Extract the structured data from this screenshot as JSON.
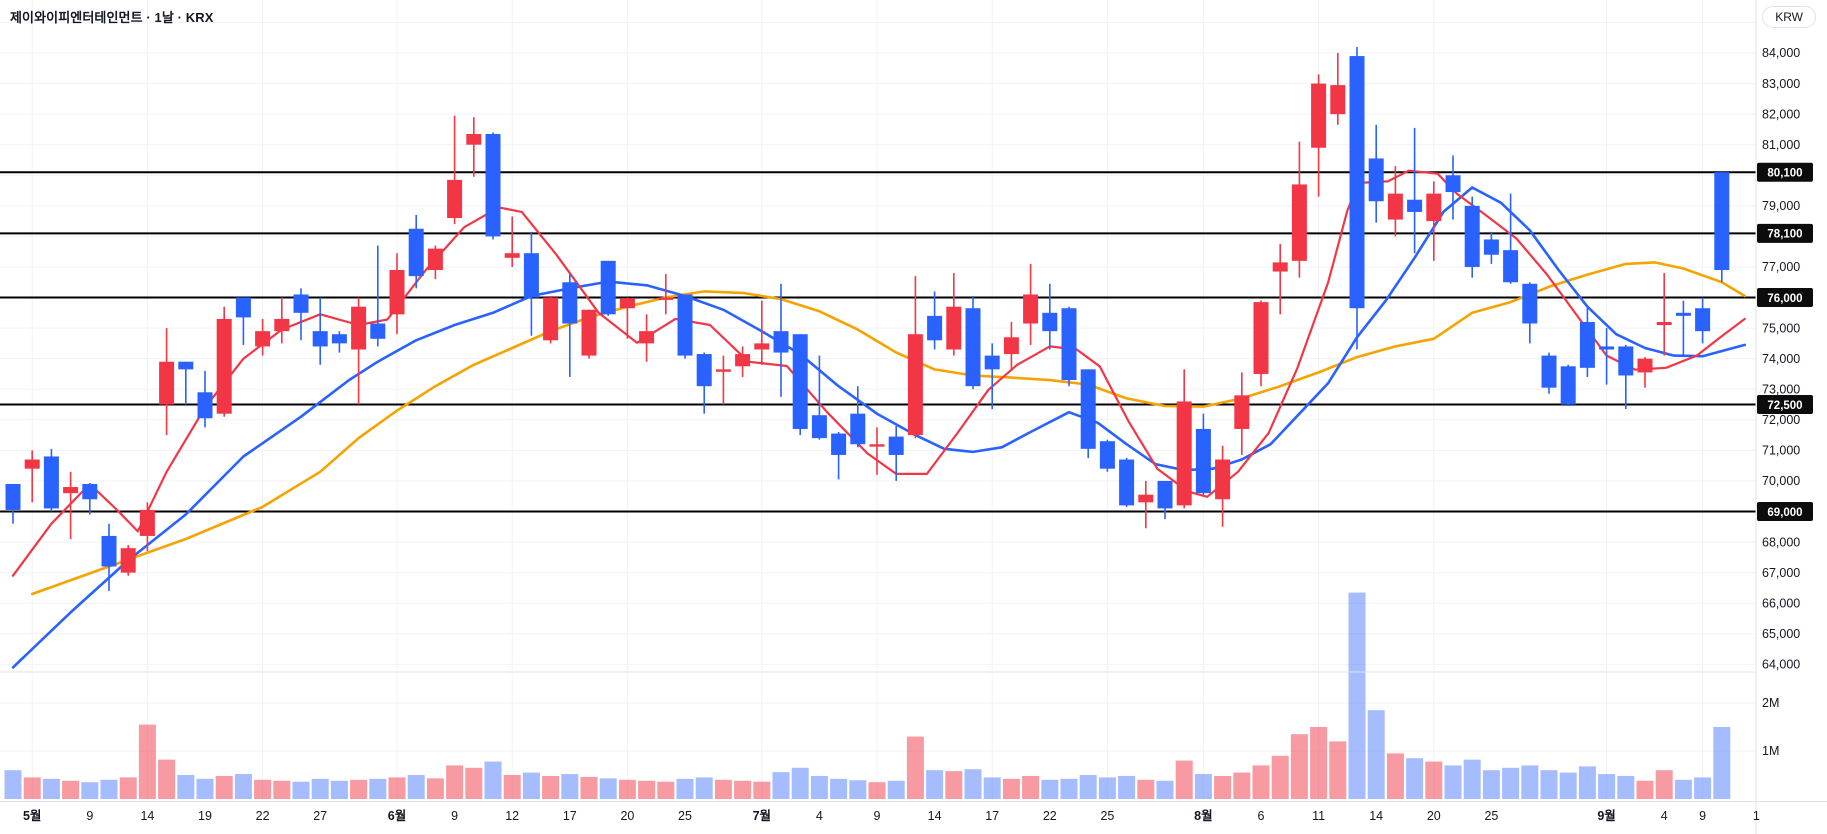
{
  "header": {
    "title": "제이와이피엔터테인먼트 · 1날 · KRX",
    "currency_button": "KRW"
  },
  "chart_data": {
    "type": "candlestick",
    "title": "제이와이피엔터테인먼트 · 1날 · KRX",
    "exchange": "KRX",
    "interval": "1날",
    "currency": "KRW",
    "legend_position": "top-left",
    "grid": true,
    "price_axis_ticks": [
      "84,000",
      "83,000",
      "82,000",
      "81,000",
      "80,000",
      "79,000",
      "78,000",
      "77,000",
      "76,000",
      "75,000",
      "74,000",
      "73,000",
      "72,000",
      "71,000",
      "70,000",
      "69,000",
      "68,000",
      "67,000",
      "66,000",
      "65,000",
      "64,000"
    ],
    "price_axis_values": [
      84000,
      83000,
      82000,
      81000,
      80000,
      79000,
      78000,
      77000,
      76000,
      75000,
      74000,
      73000,
      72000,
      71000,
      70000,
      69000,
      68000,
      67000,
      66000,
      65000,
      64000
    ],
    "volume_axis_ticks": [
      {
        "label": "2M",
        "value": 2
      },
      {
        "label": "1M",
        "value": 1
      }
    ],
    "price_levels": [
      {
        "price": 80100,
        "label": "80,100"
      },
      {
        "price": 78100,
        "label": "78,100"
      },
      {
        "price": 76000,
        "label": "76,000"
      },
      {
        "price": 72500,
        "label": "72,500"
      },
      {
        "price": 69000,
        "label": "69,000"
      }
    ],
    "x_labels": [
      {
        "i": 1,
        "t": "5월",
        "m": true
      },
      {
        "i": 4,
        "t": "9"
      },
      {
        "i": 7,
        "t": "14"
      },
      {
        "i": 10,
        "t": "19"
      },
      {
        "i": 13,
        "t": "22"
      },
      {
        "i": 16,
        "t": "27"
      },
      {
        "i": 20,
        "t": "6월",
        "m": true
      },
      {
        "i": 23,
        "t": "9"
      },
      {
        "i": 26,
        "t": "12"
      },
      {
        "i": 29,
        "t": "17"
      },
      {
        "i": 32,
        "t": "20"
      },
      {
        "i": 35,
        "t": "25"
      },
      {
        "i": 39,
        "t": "7월",
        "m": true
      },
      {
        "i": 42,
        "t": "4"
      },
      {
        "i": 45,
        "t": "9"
      },
      {
        "i": 48,
        "t": "14"
      },
      {
        "i": 51,
        "t": "17"
      },
      {
        "i": 54,
        "t": "22"
      },
      {
        "i": 57,
        "t": "25"
      },
      {
        "i": 62,
        "t": "8월",
        "m": true
      },
      {
        "i": 65,
        "t": "6"
      },
      {
        "i": 68,
        "t": "11"
      },
      {
        "i": 71,
        "t": "14"
      },
      {
        "i": 74,
        "t": "20"
      },
      {
        "i": 77,
        "t": "25"
      },
      {
        "i": 83,
        "t": "9월",
        "m": true
      },
      {
        "i": 86,
        "t": "4"
      },
      {
        "i": 88,
        "t": "9"
      },
      {
        "i": 90.8,
        "t": "1"
      }
    ],
    "v_grid_indices": [
      1,
      7,
      13,
      20,
      26,
      32,
      39,
      45,
      51,
      57,
      62,
      68,
      74,
      83,
      88
    ],
    "candles": [
      [
        69900,
        69900,
        68600,
        69050
      ],
      [
        70400,
        71000,
        69300,
        70700
      ],
      [
        70800,
        71050,
        69000,
        69100
      ],
      [
        69600,
        70300,
        68100,
        69800
      ],
      [
        69900,
        69900,
        68900,
        69400
      ],
      [
        68200,
        68600,
        66400,
        67200
      ],
      [
        67000,
        67900,
        66900,
        67800
      ],
      [
        68200,
        69300,
        67700,
        69050
      ],
      [
        72500,
        75000,
        71500,
        73900
      ],
      [
        73900,
        73900,
        72500,
        73650
      ],
      [
        72900,
        73600,
        71750,
        72050
      ],
      [
        72200,
        75700,
        72100,
        75300
      ],
      [
        76000,
        76000,
        74450,
        75350
      ],
      [
        74400,
        75300,
        74100,
        74900
      ],
      [
        74900,
        76000,
        74500,
        75300
      ],
      [
        76100,
        76300,
        74600,
        75500
      ],
      [
        74900,
        76000,
        73800,
        74400
      ],
      [
        74800,
        74900,
        74200,
        74500
      ],
      [
        74300,
        76000,
        72500,
        75700
      ],
      [
        75150,
        77700,
        74400,
        74650
      ],
      [
        75450,
        77450,
        74800,
        76900
      ],
      [
        78250,
        78700,
        76300,
        76700
      ],
      [
        76900,
        77700,
        76600,
        77600
      ],
      [
        78600,
        81950,
        78400,
        79850
      ],
      [
        81000,
        81900,
        79950,
        81350
      ],
      [
        81350,
        81400,
        77900,
        78000
      ],
      [
        77300,
        78650,
        77000,
        77450
      ],
      [
        77450,
        78150,
        74750,
        76000
      ],
      [
        74600,
        76050,
        74500,
        76000
      ],
      [
        76500,
        76750,
        73400,
        75150
      ],
      [
        74100,
        75600,
        74000,
        75600
      ],
      [
        77200,
        77200,
        75400,
        75450
      ],
      [
        75650,
        76000,
        74650,
        75980
      ],
      [
        74500,
        75450,
        73900,
        74900
      ],
      [
        75980,
        76770,
        75450,
        76000
      ],
      [
        76100,
        76100,
        74000,
        74100
      ],
      [
        74150,
        74200,
        72200,
        73100
      ],
      [
        73600,
        74100,
        72500,
        73650
      ],
      [
        73750,
        74400,
        73400,
        74150
      ],
      [
        74300,
        75900,
        73800,
        74500
      ],
      [
        74900,
        76450,
        72750,
        74200
      ],
      [
        74800,
        74800,
        71500,
        71700
      ],
      [
        72150,
        74100,
        71350,
        71400
      ],
      [
        71550,
        71600,
        70050,
        70850
      ],
      [
        72200,
        73100,
        71100,
        71200
      ],
      [
        71150,
        71750,
        70200,
        71200
      ],
      [
        71450,
        71800,
        70000,
        70850
      ],
      [
        71500,
        76700,
        71400,
        74800
      ],
      [
        75400,
        76200,
        74300,
        74600
      ],
      [
        74300,
        76800,
        74100,
        75700
      ],
      [
        75650,
        76050,
        73000,
        73100
      ],
      [
        74100,
        74500,
        72350,
        73650
      ],
      [
        74150,
        75200,
        73600,
        74700
      ],
      [
        75150,
        77100,
        74450,
        76100
      ],
      [
        75500,
        76450,
        74300,
        74900
      ],
      [
        75650,
        75700,
        73100,
        73300
      ],
      [
        73650,
        73650,
        70750,
        71050
      ],
      [
        71300,
        71350,
        70300,
        70400
      ],
      [
        70700,
        70750,
        69150,
        69200
      ],
      [
        69300,
        70000,
        68450,
        69550
      ],
      [
        70000,
        70000,
        68750,
        69100
      ],
      [
        69200,
        73650,
        69100,
        72600
      ],
      [
        71700,
        72200,
        69550,
        69600
      ],
      [
        69400,
        71150,
        68500,
        70700
      ],
      [
        71700,
        73550,
        70850,
        72800
      ],
      [
        73500,
        75900,
        73100,
        75850
      ],
      [
        76850,
        77750,
        75450,
        77150
      ],
      [
        77200,
        81100,
        76650,
        79700
      ],
      [
        80900,
        83300,
        79300,
        83000
      ],
      [
        82000,
        84000,
        81650,
        82950
      ],
      [
        83900,
        84200,
        74300,
        75650
      ],
      [
        80550,
        81650,
        78450,
        79150
      ],
      [
        78550,
        80300,
        78000,
        79400
      ],
      [
        79200,
        81550,
        77450,
        78800
      ],
      [
        78500,
        79800,
        77200,
        79400
      ],
      [
        80000,
        80650,
        78550,
        79450
      ],
      [
        79000,
        79300,
        76650,
        77000
      ],
      [
        77900,
        78150,
        77100,
        77400
      ],
      [
        77550,
        79400,
        76450,
        76500
      ],
      [
        76450,
        76500,
        74500,
        75150
      ],
      [
        74100,
        74200,
        72850,
        73050
      ],
      [
        73750,
        73800,
        72450,
        72500
      ],
      [
        75200,
        75650,
        73400,
        73700
      ],
      [
        74400,
        75000,
        73150,
        74300
      ],
      [
        74400,
        74450,
        72350,
        73450
      ],
      [
        73550,
        74050,
        73050,
        74000
      ],
      [
        75100,
        76800,
        74100,
        75200
      ],
      [
        75500,
        75900,
        74100,
        75400
      ],
      [
        75650,
        76000,
        74500,
        74900
      ],
      [
        80100,
        80100,
        76500,
        76900
      ]
    ],
    "volumes_millions": [
      0.6,
      0.45,
      0.42,
      0.38,
      0.35,
      0.4,
      0.45,
      1.55,
      0.82,
      0.5,
      0.42,
      0.48,
      0.52,
      0.4,
      0.38,
      0.36,
      0.42,
      0.38,
      0.4,
      0.42,
      0.45,
      0.5,
      0.43,
      0.7,
      0.65,
      0.78,
      0.5,
      0.55,
      0.48,
      0.52,
      0.46,
      0.43,
      0.4,
      0.38,
      0.36,
      0.42,
      0.45,
      0.4,
      0.38,
      0.36,
      0.56,
      0.65,
      0.48,
      0.42,
      0.39,
      0.35,
      0.38,
      1.3,
      0.6,
      0.58,
      0.62,
      0.45,
      0.42,
      0.48,
      0.4,
      0.42,
      0.5,
      0.45,
      0.48,
      0.4,
      0.38,
      0.8,
      0.52,
      0.48,
      0.55,
      0.7,
      0.9,
      1.35,
      1.5,
      1.2,
      4.3,
      1.85,
      0.95,
      0.85,
      0.78,
      0.7,
      0.82,
      0.6,
      0.65,
      0.7,
      0.6,
      0.55,
      0.68,
      0.52,
      0.48,
      0.38,
      0.6,
      0.4,
      0.45,
      1.5
    ],
    "ma_fast_red": [
      [
        0,
        66900
      ],
      [
        2,
        68600
      ],
      [
        4,
        69900
      ],
      [
        5.5,
        69000
      ],
      [
        6.5,
        68350
      ],
      [
        8,
        70300
      ],
      [
        10,
        72400
      ],
      [
        12,
        74000
      ],
      [
        14,
        74950
      ],
      [
        16,
        75450
      ],
      [
        18,
        75100
      ],
      [
        19.5,
        75280
      ],
      [
        21.5,
        76900
      ],
      [
        23.5,
        78300
      ],
      [
        25.3,
        78950
      ],
      [
        26.5,
        78800
      ],
      [
        28.3,
        77400
      ],
      [
        30.5,
        75500
      ],
      [
        32.5,
        74520
      ],
      [
        34.5,
        75300
      ],
      [
        36.3,
        75100
      ],
      [
        38.3,
        73900
      ],
      [
        40.3,
        73760
      ],
      [
        42.4,
        72250
      ],
      [
        44.5,
        70900
      ],
      [
        46,
        70230
      ],
      [
        47.6,
        70230
      ],
      [
        49.2,
        71570
      ],
      [
        50.8,
        72980
      ],
      [
        52.3,
        73800
      ],
      [
        54,
        74400
      ],
      [
        55.4,
        74300
      ],
      [
        56.6,
        73750
      ],
      [
        58.1,
        71950
      ],
      [
        59.6,
        70400
      ],
      [
        61.2,
        69650
      ],
      [
        62.2,
        69480
      ],
      [
        63.8,
        70300
      ],
      [
        65.4,
        71570
      ],
      [
        66.9,
        73700
      ],
      [
        68.5,
        76500
      ],
      [
        69.5,
        78850
      ],
      [
        70.1,
        79750
      ],
      [
        71.6,
        79800
      ],
      [
        72.7,
        80150
      ],
      [
        74.2,
        80050
      ],
      [
        75.2,
        79400
      ],
      [
        76.8,
        78650
      ],
      [
        78.3,
        77930
      ],
      [
        79.9,
        76750
      ],
      [
        81.4,
        75460
      ],
      [
        83,
        74100
      ],
      [
        84.5,
        73640
      ],
      [
        86.1,
        73700
      ],
      [
        87.7,
        74100
      ],
      [
        88.9,
        74690
      ],
      [
        90.2,
        75300
      ]
    ],
    "ma_mid_blue": [
      [
        0,
        63900
      ],
      [
        3,
        65700
      ],
      [
        6,
        67400
      ],
      [
        9,
        68900
      ],
      [
        12,
        70800
      ],
      [
        15,
        72100
      ],
      [
        17.5,
        73300
      ],
      [
        19,
        73900
      ],
      [
        21,
        74600
      ],
      [
        23,
        75100
      ],
      [
        25,
        75500
      ],
      [
        27,
        76050
      ],
      [
        29,
        76300
      ],
      [
        31,
        76520
      ],
      [
        33,
        76400
      ],
      [
        35,
        76050
      ],
      [
        37,
        75600
      ],
      [
        39,
        74900
      ],
      [
        41,
        74150
      ],
      [
        43,
        73100
      ],
      [
        45,
        72200
      ],
      [
        47,
        71500
      ],
      [
        48.5,
        71050
      ],
      [
        50,
        70950
      ],
      [
        51.5,
        71100
      ],
      [
        53,
        71600
      ],
      [
        55,
        72250
      ],
      [
        56.5,
        71900
      ],
      [
        58,
        71200
      ],
      [
        59.5,
        70550
      ],
      [
        61,
        70350
      ],
      [
        62.5,
        70400
      ],
      [
        64,
        70700
      ],
      [
        65.5,
        71200
      ],
      [
        67,
        72200
      ],
      [
        68.5,
        73200
      ],
      [
        70,
        74700
      ],
      [
        71.5,
        75900
      ],
      [
        73,
        77300
      ],
      [
        74.5,
        78800
      ],
      [
        76,
        79600
      ],
      [
        77.5,
        79100
      ],
      [
        79,
        78200
      ],
      [
        80.5,
        76900
      ],
      [
        82,
        75700
      ],
      [
        83.5,
        74800
      ],
      [
        85,
        74350
      ],
      [
        86.5,
        74100
      ],
      [
        88,
        74080
      ],
      [
        89.3,
        74300
      ],
      [
        90.2,
        74450
      ]
    ],
    "ma_slow_yellow": [
      [
        1,
        66300
      ],
      [
        5,
        67200
      ],
      [
        9,
        68100
      ],
      [
        13,
        69150
      ],
      [
        16,
        70300
      ],
      [
        18,
        71400
      ],
      [
        20,
        72300
      ],
      [
        22,
        73100
      ],
      [
        24,
        73800
      ],
      [
        26,
        74350
      ],
      [
        28,
        74900
      ],
      [
        30,
        75350
      ],
      [
        32,
        75700
      ],
      [
        34,
        76000
      ],
      [
        36,
        76200
      ],
      [
        38,
        76150
      ],
      [
        40,
        75950
      ],
      [
        42,
        75550
      ],
      [
        44,
        74950
      ],
      [
        46,
        74200
      ],
      [
        48,
        73650
      ],
      [
        50,
        73450
      ],
      [
        52,
        73380
      ],
      [
        54,
        73300
      ],
      [
        56,
        73150
      ],
      [
        58,
        72700
      ],
      [
        60,
        72450
      ],
      [
        62,
        72430
      ],
      [
        64,
        72700
      ],
      [
        66,
        73100
      ],
      [
        68,
        73550
      ],
      [
        70,
        74050
      ],
      [
        72,
        74400
      ],
      [
        74,
        74650
      ],
      [
        76,
        75500
      ],
      [
        78,
        75850
      ],
      [
        80,
        76350
      ],
      [
        82,
        76750
      ],
      [
        84,
        77100
      ],
      [
        85.5,
        77150
      ],
      [
        87,
        76950
      ],
      [
        89,
        76500
      ],
      [
        90.2,
        76050
      ]
    ],
    "colors": {
      "up": "#f23645",
      "down": "#2962ff",
      "vol_up": "rgba(242,54,69,0.5)",
      "vol_down": "rgba(41,98,255,0.42)",
      "ma_fast": "#f23645",
      "ma_mid": "#2962ff",
      "ma_slow": "#f5a300",
      "level_line": "#000000",
      "level_label_bg": "#0c0c0c",
      "level_label_text": "#ffffff",
      "grid": "#f0f3fa",
      "axis_text": "#131722",
      "border": "#e0e3eb",
      "background": "#ffffff"
    }
  }
}
